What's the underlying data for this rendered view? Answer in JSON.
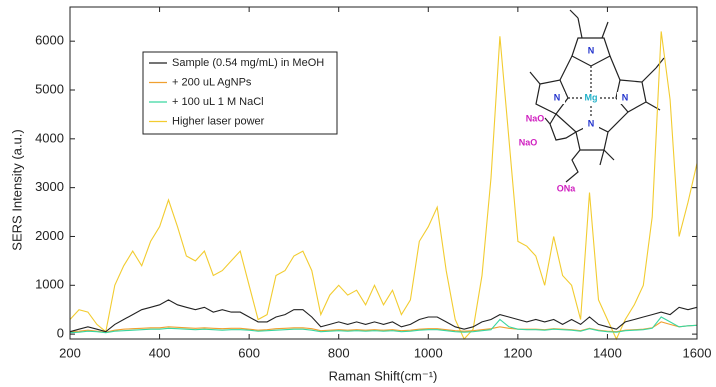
{
  "chart_data": {
    "type": "line",
    "x_label": "Raman Shift(cm⁻¹)",
    "y_label": "SERS Intensity (a.u.)",
    "x": [
      200,
      220,
      240,
      260,
      280,
      300,
      320,
      340,
      360,
      380,
      400,
      420,
      440,
      460,
      480,
      500,
      520,
      540,
      560,
      580,
      600,
      620,
      640,
      660,
      680,
      700,
      720,
      740,
      760,
      780,
      800,
      820,
      840,
      860,
      880,
      900,
      920,
      940,
      960,
      980,
      1000,
      1020,
      1040,
      1060,
      1080,
      1100,
      1120,
      1140,
      1160,
      1180,
      1200,
      1220,
      1240,
      1260,
      1280,
      1300,
      1320,
      1340,
      1360,
      1380,
      1400,
      1420,
      1440,
      1460,
      1480,
      1500,
      1520,
      1540,
      1560,
      1580,
      1600
    ],
    "series": [
      {
        "name": "Sample (0.54 mg/mL) in MeOH",
        "color": "#222222",
        "values": [
          50,
          100,
          150,
          100,
          50,
          200,
          300,
          400,
          500,
          550,
          600,
          700,
          600,
          550,
          500,
          550,
          450,
          500,
          450,
          450,
          350,
          250,
          250,
          350,
          400,
          500,
          500,
          350,
          150,
          200,
          250,
          200,
          250,
          200,
          250,
          200,
          250,
          150,
          200,
          300,
          350,
          350,
          250,
          150,
          100,
          150,
          250,
          300,
          400,
          350,
          300,
          250,
          300,
          250,
          300,
          200,
          300,
          200,
          350,
          200,
          150,
          100,
          250,
          300,
          350,
          400,
          450,
          400,
          550,
          500,
          550
        ]
      },
      {
        "name": "+ 200 uL AgNPs",
        "color": "#f0a030",
        "values": [
          50,
          60,
          80,
          60,
          40,
          80,
          100,
          110,
          120,
          130,
          130,
          150,
          140,
          130,
          120,
          130,
          120,
          110,
          120,
          120,
          100,
          80,
          90,
          110,
          120,
          130,
          130,
          110,
          70,
          80,
          90,
          80,
          90,
          80,
          90,
          80,
          90,
          70,
          80,
          100,
          110,
          110,
          90,
          70,
          60,
          70,
          90,
          110,
          150,
          120,
          100,
          100,
          100,
          90,
          110,
          100,
          90,
          70,
          120,
          80,
          60,
          50,
          80,
          90,
          100,
          130,
          250,
          200,
          150,
          170,
          180
        ]
      },
      {
        "name": "+ 100 uL 1 M NaCl",
        "color": "#3ad6a0",
        "values": [
          30,
          40,
          60,
          50,
          30,
          60,
          70,
          80,
          90,
          100,
          100,
          120,
          110,
          100,
          90,
          100,
          90,
          80,
          90,
          90,
          80,
          60,
          70,
          80,
          90,
          100,
          100,
          80,
          50,
          60,
          70,
          60,
          70,
          60,
          70,
          60,
          70,
          50,
          60,
          80,
          90,
          90,
          70,
          50,
          40,
          50,
          70,
          90,
          300,
          150,
          100,
          90,
          90,
          80,
          100,
          90,
          80,
          60,
          110,
          70,
          50,
          40,
          70,
          80,
          90,
          120,
          350,
          250,
          150,
          170,
          180
        ]
      },
      {
        "name": "Higher laser power",
        "color": "#f2cc30",
        "values": [
          300,
          500,
          450,
          200,
          50,
          1000,
          1400,
          1700,
          1400,
          1900,
          2200,
          2750,
          2200,
          1600,
          1500,
          1700,
          1200,
          1300,
          1500,
          1700,
          1000,
          300,
          400,
          1200,
          1300,
          1600,
          1700,
          1300,
          400,
          800,
          1000,
          800,
          900,
          600,
          1000,
          600,
          900,
          400,
          700,
          1900,
          2200,
          2600,
          1300,
          300,
          -100,
          100,
          1200,
          3200,
          6100,
          4000,
          1900,
          1800,
          1600,
          1000,
          2000,
          1200,
          1000,
          300,
          2900,
          700,
          300,
          -100,
          300,
          600,
          1000,
          2400,
          6200,
          4800,
          2000,
          2700,
          3500
        ]
      }
    ],
    "xlim": [
      200,
      1600
    ],
    "ylim": [
      -100,
      6700
    ],
    "xticks": [
      200,
      400,
      600,
      800,
      1000,
      1200,
      1400,
      1600
    ],
    "yticks": [
      0,
      1000,
      2000,
      3000,
      4000,
      5000,
      6000
    ],
    "legend": "upper left",
    "annotations": [
      "N",
      "N",
      "N",
      "N",
      "Mg",
      "NaO",
      "NaO",
      "ONa"
    ]
  }
}
